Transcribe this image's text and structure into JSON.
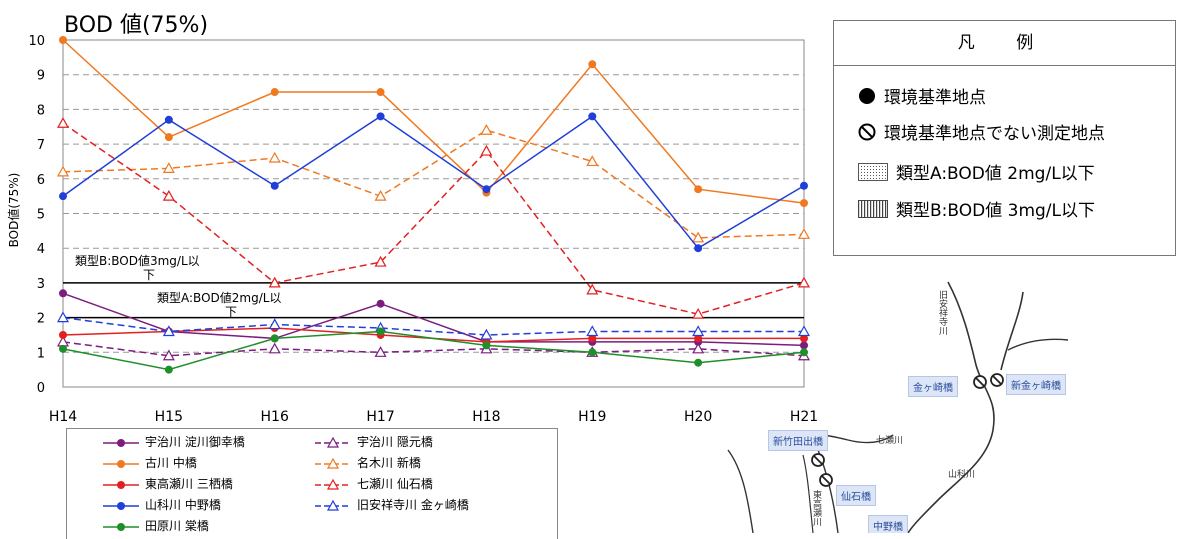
{
  "chart_data": {
    "type": "line",
    "title": "BOD 値(75%)",
    "ylabel": "BOD値(75%)",
    "xlabel": "",
    "categories": [
      "H14",
      "H15",
      "H16",
      "H17",
      "H18",
      "H19",
      "H20",
      "H21"
    ],
    "ylim": [
      0,
      10
    ],
    "yticks": [
      0,
      1,
      2,
      3,
      4,
      5,
      6,
      7,
      8,
      9,
      10
    ],
    "grid": "dashed horizontal",
    "reference_lines": [
      {
        "value": 3,
        "label": "類型B:BOD値3mg/L以下"
      },
      {
        "value": 2,
        "label": "類型A:BOD値2mg/L以下"
      }
    ],
    "series": [
      {
        "name": "宇治川 淀川御幸橋",
        "color": "#7b1c7f",
        "marker": "circle",
        "dash": false,
        "values": [
          2.7,
          1.6,
          1.4,
          2.4,
          1.3,
          1.3,
          1.3,
          1.2
        ]
      },
      {
        "name": "宇治川 隠元橋",
        "color": "#7b1c7f",
        "marker": "triangle",
        "dash": true,
        "values": [
          1.3,
          0.9,
          1.1,
          1.0,
          1.1,
          1.0,
          1.1,
          0.9
        ]
      },
      {
        "name": "古川 中橋",
        "color": "#f07820",
        "marker": "circle",
        "dash": false,
        "values": [
          10.0,
          7.2,
          8.5,
          8.5,
          5.6,
          9.3,
          5.7,
          5.3
        ]
      },
      {
        "name": "名木川 新橋",
        "color": "#f07820",
        "marker": "triangle",
        "dash": true,
        "values": [
          6.2,
          6.3,
          6.6,
          5.5,
          7.4,
          6.5,
          4.3,
          4.4
        ]
      },
      {
        "name": "東高瀬川 三栖橋",
        "color": "#e32020",
        "marker": "circle",
        "dash": false,
        "values": [
          1.5,
          1.6,
          1.7,
          1.5,
          1.3,
          1.4,
          1.4,
          1.4
        ]
      },
      {
        "name": "七瀬川 仙石橋",
        "color": "#e32020",
        "marker": "triangle",
        "dash": true,
        "values": [
          7.6,
          5.5,
          3.0,
          3.6,
          6.8,
          2.8,
          2.1,
          3.0
        ]
      },
      {
        "name": "山科川 中野橋",
        "color": "#1f3fd8",
        "marker": "circle",
        "dash": false,
        "values": [
          5.5,
          7.7,
          5.8,
          7.8,
          5.7,
          7.8,
          4.0,
          5.8
        ]
      },
      {
        "name": "旧安祥寺川 金ヶ崎橋",
        "color": "#1f3fd8",
        "marker": "triangle",
        "dash": true,
        "values": [
          2.0,
          1.6,
          1.8,
          1.7,
          1.5,
          1.6,
          1.6,
          1.6
        ]
      },
      {
        "name": "田原川 棠橋",
        "color": "#1f8f2a",
        "marker": "circle",
        "dash": false,
        "values": [
          1.1,
          0.5,
          1.4,
          1.6,
          1.2,
          1.0,
          0.7,
          1.0
        ]
      }
    ]
  },
  "legend": {
    "title": "凡 例",
    "items": [
      {
        "label": "環境基準地点"
      },
      {
        "label": "環境基準地点でない測定地点"
      },
      {
        "label": "類型A:BOD値 2mg/L以下"
      },
      {
        "label": "類型B:BOD値 3mg/L以下"
      }
    ]
  },
  "map": {
    "labels": [
      "金ヶ崎橋",
      "新金ヶ崎橋",
      "新竹田出橋",
      "仙石橋",
      "中野橋"
    ],
    "river_labels": [
      "旧安祥寺川",
      "七瀬川",
      "山科川",
      "東高瀬川"
    ]
  }
}
